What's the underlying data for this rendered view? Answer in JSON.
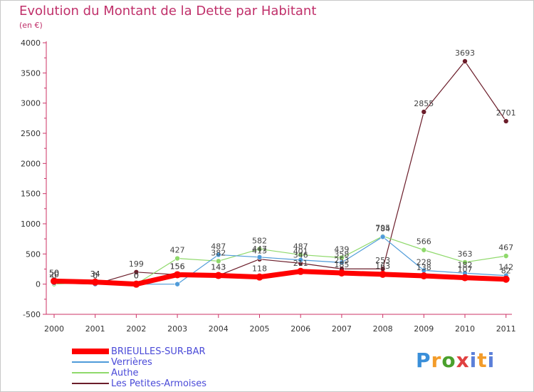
{
  "chart_data": {
    "type": "line",
    "title": "Evolution du Montant de la Dette par Habitant",
    "unit_label": "(en €)",
    "xlabel": "",
    "ylabel": "",
    "ylim": [
      -500,
      4000
    ],
    "yticks": [
      -500,
      0,
      500,
      1000,
      1500,
      2000,
      2500,
      3000,
      3500,
      4000
    ],
    "categories": [
      "2000",
      "2001",
      "2002",
      "2003",
      "2004",
      "2005",
      "2006",
      "2007",
      "2008",
      "2009",
      "2010",
      "2011"
    ],
    "series": [
      {
        "name": "BRIEULLES-SUR-BAR",
        "color": "#ff0000",
        "values": [
          50,
          34,
          0,
          156,
          143,
          118,
          211,
          185,
          163,
          138,
          107,
          82
        ]
      },
      {
        "name": "Verrières",
        "color": "#4f9bd9",
        "values": [
          20,
          0,
          0,
          0,
          487,
          447,
          401,
          358,
          784,
          228,
          182,
          142
        ]
      },
      {
        "name": "Authe",
        "color": "#8fd96b",
        "values": [
          0,
          34,
          0,
          427,
          382,
          582,
          487,
          439,
          795,
          566,
          363,
          467
        ]
      },
      {
        "name": "Les Petites-Armoises",
        "color": "#6b1d2a",
        "values": [
          50,
          0,
          199,
          156,
          143,
          413,
          346,
          253,
          253,
          2855,
          3693,
          2701
        ]
      }
    ],
    "data_labels": [
      {
        "series": "BRIEULLES-SUR-BAR",
        "labels": [
          "50",
          "34",
          "0",
          "156",
          "143",
          "118",
          "211",
          "185",
          "163",
          "138",
          "107",
          "82"
        ]
      },
      {
        "series": "Verrières",
        "labels": [
          "20",
          "0",
          "0",
          "",
          "487",
          "447",
          "401",
          "358",
          "784",
          "228",
          "182",
          "142"
        ]
      },
      {
        "series": "Authe",
        "labels": [
          "0",
          "34",
          "0",
          "427",
          "382",
          "582",
          "487",
          "439",
          "795",
          "566",
          "363",
          "467"
        ]
      },
      {
        "series": "Les Petites-Armoises",
        "labels": [
          "50",
          "0",
          "199",
          "156",
          "143",
          "413",
          "346",
          "253",
          "253",
          "2855",
          "3693",
          "2701"
        ]
      }
    ],
    "grid": false,
    "legend_position": "bottom-left"
  },
  "legend": {
    "items": [
      "BRIEULLES-SUR-BAR",
      "Verrières",
      "Authe",
      "Les Petites-Armoises"
    ]
  },
  "logo": {
    "letters": [
      "P",
      "r",
      "o",
      "x",
      "i",
      "t",
      "i"
    ]
  }
}
